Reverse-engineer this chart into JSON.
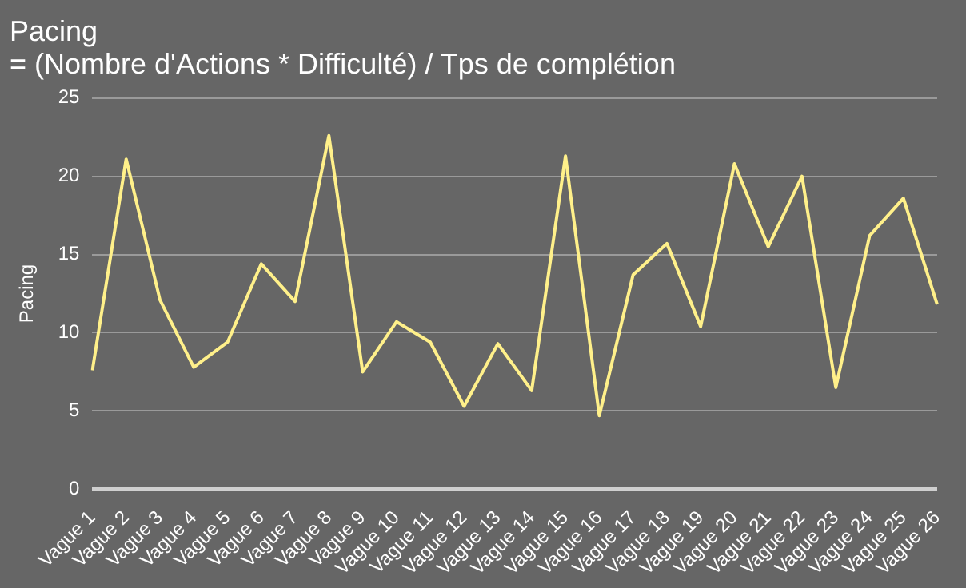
{
  "chart_data": {
    "type": "line",
    "title": "Pacing",
    "subtitle": "= (Nombre d'Actions * Difficulté) / Tps de complétion",
    "ylabel": "Pacing",
    "categories": [
      "Vague 1",
      "Vague 2",
      "Vague 3",
      "Vague 4",
      "Vague 5",
      "Vague 6",
      "Vague 7",
      "Vague 8",
      "Vague 9",
      "Vague 10",
      "Vague 11",
      "Vague 12",
      "Vague 13",
      "Vague 14",
      "Vague 15",
      "Vague 16",
      "Vague 17",
      "Vague 18",
      "Vague 19",
      "Vague 20",
      "Vague 21",
      "Vague 22",
      "Vague 23",
      "Vague 24",
      "Vague 25",
      "Vague 26"
    ],
    "series": [
      {
        "color": "#fff08a",
        "values": [
          7.6,
          21.1,
          12.1,
          7.8,
          9.4,
          14.4,
          12.0,
          22.6,
          7.5,
          10.7,
          9.4,
          5.3,
          9.3,
          6.3,
          21.3,
          4.7,
          13.7,
          15.7,
          10.4,
          20.8,
          15.5,
          20.0,
          6.5,
          16.2,
          18.6,
          11.8
        ]
      }
    ],
    "ylim": [
      0,
      25
    ],
    "yticks": [
      0,
      5,
      10,
      15,
      20,
      25
    ],
    "grid": "y",
    "legend": false,
    "marker": "none",
    "line_style": "solid"
  }
}
